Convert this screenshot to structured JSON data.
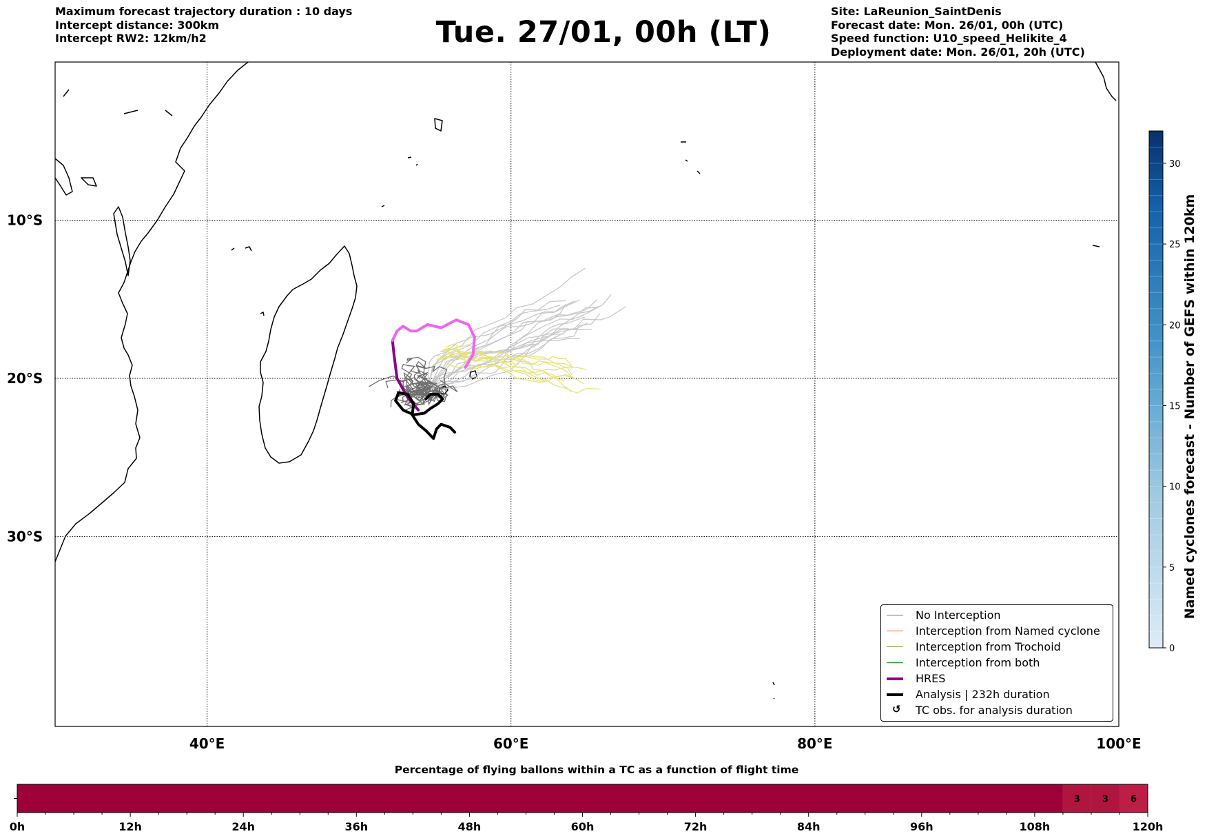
{
  "header": {
    "left_lines": [
      "Maximum forecast trajectory duration : 10 days",
      "Intercept distance: 300km",
      "Intercept RW2: 12km/h2"
    ],
    "title": "Tue. 27/01, 00h (LT)",
    "right_lines": [
      "Site: LaReunion_SaintDenis",
      "Forecast date: Mon. 26/01, 00h (UTC)",
      "Speed function: U10_speed_Helikite_4",
      "Deployment date: Mon. 26/01, 20h (UTC)"
    ]
  },
  "colors": {
    "no_interception": "#6e6e6e",
    "no_interception_light": "#c8c8c8",
    "named_cyclone": "#ff5a1f",
    "trochoid": "#8b8a1a",
    "both": "#1a9a1a",
    "hres": "#8b008b",
    "hres_light": "#ee66ee",
    "analysis": "#000000",
    "yellow_tracks": "#e6e27a",
    "bar_main": "#9e0038",
    "bar_light": "#bd1e45",
    "cbar_low": "#deebf7",
    "cbar_high": "#08306b"
  },
  "chart_data": [
    {
      "type": "line",
      "title": "Tue. 27/01, 00h (LT)",
      "xlim": [
        30,
        100
      ],
      "ylim": [
        -42,
        0
      ],
      "xticks": [
        40,
        60,
        80,
        100
      ],
      "xtick_labels": [
        "40°E",
        "60°E",
        "80°E",
        "100°E"
      ],
      "yticks": [
        -10,
        -20,
        -30
      ],
      "ytick_labels": [
        "10°S",
        "20°S",
        "30°S"
      ],
      "grid": true,
      "legend_position": "bottom-right",
      "legend": [
        {
          "label": "No Interception",
          "style": "no_interception"
        },
        {
          "label": "Interception from Named cyclone",
          "style": "named_cyclone"
        },
        {
          "label": "Interception from Trochoid",
          "style": "trochoid"
        },
        {
          "label": "Interception from both",
          "style": "both"
        },
        {
          "label": "HRES",
          "style": "hres"
        },
        {
          "label": "Analysis | 232h duration",
          "style": "analysis"
        },
        {
          "label": "TC obs. for analysis duration",
          "style": "symbol",
          "symbol": "↺"
        }
      ],
      "series": [
        {
          "name": "HRES",
          "points": [
            [
              53.9,
              -22.0
            ],
            [
              53.2,
              -21.2
            ],
            [
              52.5,
              -20.0
            ],
            [
              52.3,
              -18.5
            ],
            [
              52.2,
              -17.6
            ],
            [
              52.5,
              -17.0
            ],
            [
              52.9,
              -16.7
            ],
            [
              53.4,
              -17.0
            ],
            [
              53.8,
              -17.0
            ],
            [
              54.5,
              -16.6
            ],
            [
              55.4,
              -16.8
            ],
            [
              56.4,
              -16.3
            ],
            [
              57.2,
              -16.6
            ],
            [
              57.6,
              -17.4
            ],
            [
              57.5,
              -18.5
            ],
            [
              57.0,
              -19.3
            ]
          ]
        },
        {
          "name": "Analysis | 232h duration",
          "points": [
            [
              54.4,
              -21.3
            ],
            [
              54.7,
              -21.0
            ],
            [
              55.2,
              -21.0
            ],
            [
              55.5,
              -21.3
            ],
            [
              55.2,
              -21.6
            ],
            [
              54.7,
              -21.9
            ],
            [
              54.3,
              -22.2
            ],
            [
              53.6,
              -22.3
            ],
            [
              52.9,
              -22.0
            ],
            [
              52.4,
              -21.4
            ],
            [
              52.6,
              -20.9
            ],
            [
              53.2,
              -21.0
            ],
            [
              53.6,
              -21.6
            ],
            [
              53.5,
              -22.3
            ],
            [
              53.9,
              -22.9
            ],
            [
              54.4,
              -23.3
            ],
            [
              54.9,
              -23.8
            ],
            [
              55.1,
              -23.2
            ],
            [
              55.4,
              -22.9
            ],
            [
              56.0,
              -23.1
            ],
            [
              56.3,
              -23.4
            ]
          ]
        }
      ]
    },
    {
      "type": "heatmap",
      "title": "Percentage of flying ballons within a TC as a function of flight time",
      "x_unit": "h",
      "xlim": [
        0,
        120
      ],
      "xtick_labels": [
        "0h",
        "12h",
        "24h",
        "36h",
        "48h",
        "60h",
        "72h",
        "84h",
        "96h",
        "108h",
        "120h"
      ],
      "cells": [
        {
          "from": 0,
          "to": 111,
          "value": 0,
          "label": ""
        },
        {
          "from": 111,
          "to": 114,
          "value": 3,
          "label": "3"
        },
        {
          "from": 114,
          "to": 117,
          "value": 3,
          "label": "3"
        },
        {
          "from": 117,
          "to": 120,
          "value": 6,
          "label": "6"
        }
      ]
    },
    {
      "type": "colorbar",
      "label": "Named cyclones forecast - Number of GEFS within 120km",
      "range": [
        0,
        32
      ],
      "ticks": [
        0,
        5,
        10,
        15,
        20,
        25,
        30
      ],
      "tick_labels": [
        "0",
        "5",
        "10",
        "15",
        "20",
        "25",
        "30"
      ]
    }
  ]
}
